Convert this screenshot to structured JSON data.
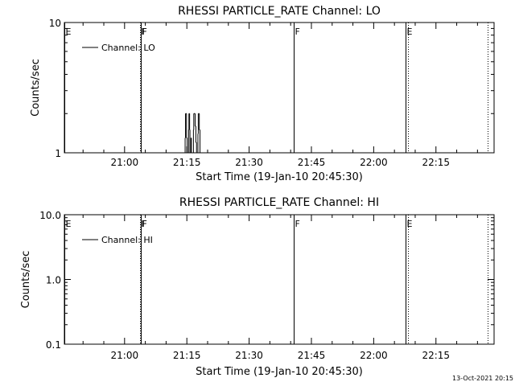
{
  "footer": {
    "timestamp": "13-Oct-2021 20:15"
  },
  "chart_data": [
    {
      "type": "line",
      "title": "RHESSI PARTICLE_RATE Channel: LO",
      "xlabel": "Start Time (19-Jan-10 20:45:30)",
      "ylabel": "Counts/sec",
      "yscale": "log",
      "xlim": [
        "20:45:30",
        "22:29:00"
      ],
      "ylim": [
        1,
        10
      ],
      "x_ticks": [
        "21:00",
        "21:15",
        "21:30",
        "21:45",
        "22:00",
        "22:15"
      ],
      "y_ticks": [
        "1",
        "10"
      ],
      "legend": {
        "label": "Channel: LO",
        "placement": "top-left"
      },
      "markers": [
        {
          "label": "E",
          "time": "20:45:30",
          "style": "solid"
        },
        {
          "label": "F",
          "time": "21:03:45",
          "style": "dotted"
        },
        {
          "label": "F",
          "time": "21:03:50",
          "style": "solid"
        },
        {
          "label": "F",
          "time": "21:40:45",
          "style": "solid"
        },
        {
          "label": "E",
          "time": "22:07:45",
          "style": "solid"
        },
        {
          "label": "",
          "time": "22:08:10",
          "style": "dotted"
        },
        {
          "label": "",
          "time": "22:27:25",
          "style": "dotted"
        }
      ],
      "series": [
        {
          "style": "step",
          "x": [
            "21:14:10",
            "21:14:35",
            "21:14:40",
            "21:14:55",
            "21:15:05",
            "21:15:25",
            "21:15:30",
            "21:15:40",
            "21:15:45",
            "21:16:00",
            "21:16:05",
            "21:16:35",
            "21:16:40",
            "21:16:55",
            "21:17:00",
            "21:17:10",
            "21:17:20",
            "21:17:40",
            "21:17:45",
            "21:18:00",
            "21:18:10"
          ],
          "y": [
            1,
            1.3,
            2,
            1.3,
            1,
            1.5,
            2,
            1.5,
            1,
            1.3,
            1,
            1.5,
            2,
            2,
            1.6,
            1.2,
            1,
            1.4,
            2,
            1.5,
            1
          ]
        }
      ]
    },
    {
      "type": "line",
      "title": "RHESSI PARTICLE_RATE Channel: HI",
      "xlabel": "Start Time (19-Jan-10 20:45:30)",
      "ylabel": "Counts/sec",
      "yscale": "log",
      "xlim": [
        "20:45:30",
        "22:29:00"
      ],
      "ylim": [
        0.1,
        10
      ],
      "x_ticks": [
        "21:00",
        "21:15",
        "21:30",
        "21:45",
        "22:00",
        "22:15"
      ],
      "y_ticks": [
        "0.1",
        "1.0",
        "10.0"
      ],
      "legend": {
        "label": "Channel: HI",
        "placement": "top-left"
      },
      "markers": [
        {
          "label": "E",
          "time": "20:45:30",
          "style": "solid"
        },
        {
          "label": "F",
          "time": "21:03:45",
          "style": "dotted"
        },
        {
          "label": "F",
          "time": "21:03:50",
          "style": "solid"
        },
        {
          "label": "F",
          "time": "21:40:45",
          "style": "solid"
        },
        {
          "label": "E",
          "time": "22:07:45",
          "style": "solid"
        },
        {
          "label": "",
          "time": "22:08:10",
          "style": "dotted"
        },
        {
          "label": "",
          "time": "22:27:25",
          "style": "dotted"
        }
      ],
      "series": []
    }
  ]
}
